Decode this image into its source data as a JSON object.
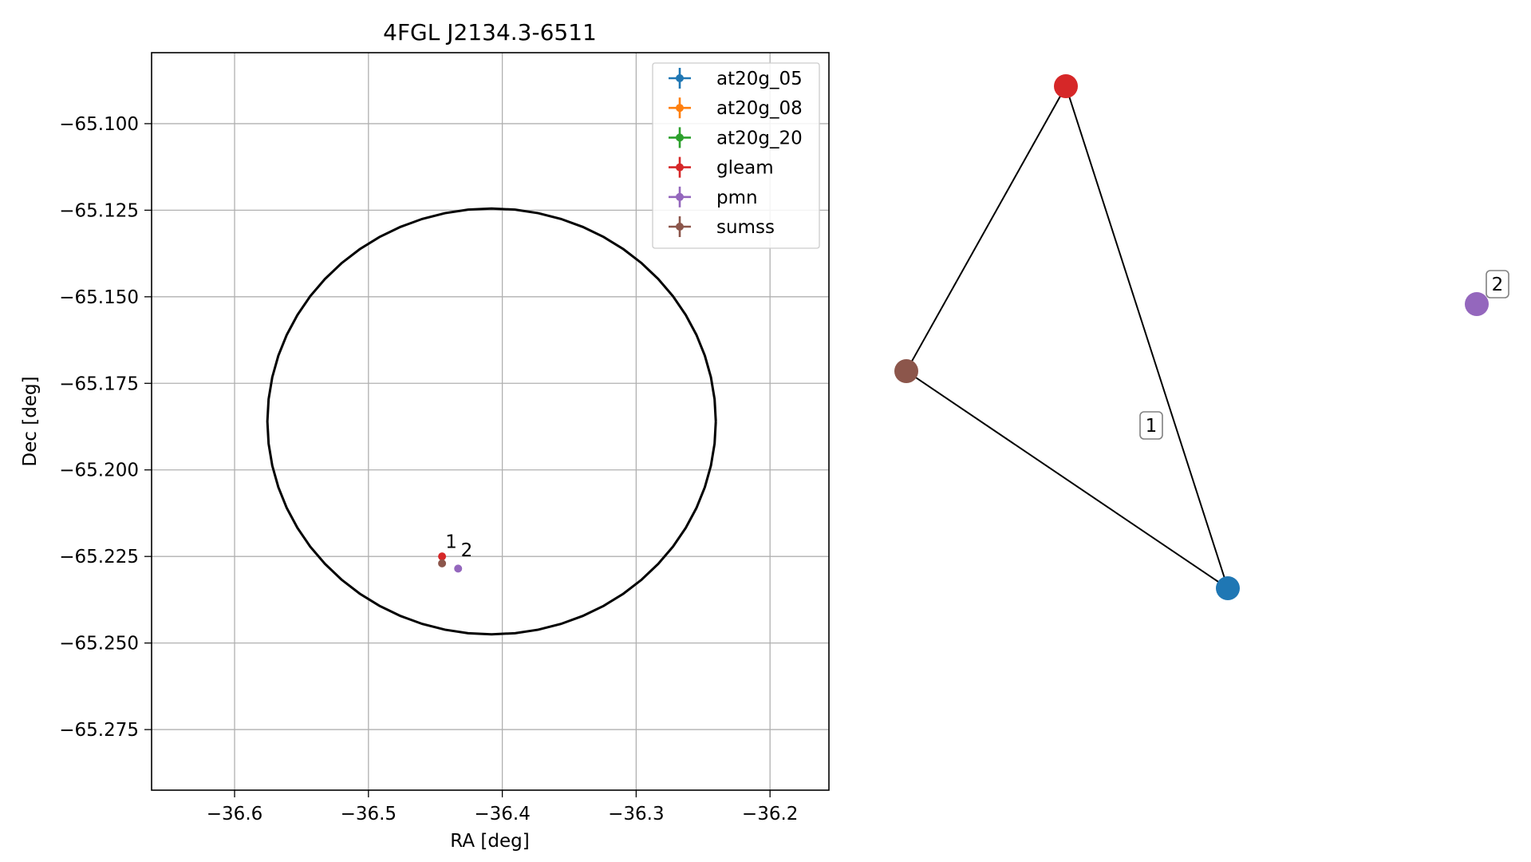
{
  "chart_data": [
    {
      "type": "scatter",
      "title": "4FGL J2134.3-6511",
      "xlabel": "RA [deg]",
      "ylabel": "Dec [deg]",
      "xlim": [
        -36.662,
        -36.156
      ],
      "ylim": [
        -65.2925,
        -65.0795
      ],
      "xticks": [
        -36.6,
        -36.5,
        -36.4,
        -36.3,
        -36.2
      ],
      "xtick_labels": [
        "−36.6",
        "−36.5",
        "−36.4",
        "−36.3",
        "−36.2"
      ],
      "yticks": [
        -65.1,
        -65.125,
        -65.15,
        -65.175,
        -65.2,
        -65.225,
        -65.25,
        -65.275
      ],
      "ytick_labels": [
        "−65.100",
        "−65.125",
        "−65.150",
        "−65.175",
        "−65.200",
        "−65.225",
        "−65.250",
        "−65.275"
      ],
      "grid": true,
      "legend_position": "top-right",
      "series": [
        {
          "name": "at20g_05",
          "color": "#1f77b4",
          "points": []
        },
        {
          "name": "at20g_08",
          "color": "#ff7f0e",
          "points": []
        },
        {
          "name": "at20g_20",
          "color": "#2ca02c",
          "points": []
        },
        {
          "name": "gleam",
          "color": "#d62728",
          "points": [
            {
              "x": -36.445,
              "y": -65.225
            }
          ]
        },
        {
          "name": "pmn",
          "color": "#9467bd",
          "points": [
            {
              "x": -36.433,
              "y": -65.2285
            }
          ]
        },
        {
          "name": "sumss",
          "color": "#8c564b",
          "points": [
            {
              "x": -36.445,
              "y": -65.227
            }
          ]
        }
      ],
      "ellipse": {
        "center_x": -36.408,
        "center_y": -65.186,
        "radius_x": 0.1675,
        "radius_y": 0.0615,
        "color": "#000000"
      },
      "annotations": [
        {
          "text": "1",
          "x": -36.4425,
          "y": -65.2225
        },
        {
          "text": "2",
          "x": -36.431,
          "y": -65.225
        }
      ]
    },
    {
      "type": "graph",
      "nodes": [
        {
          "id": "gleam",
          "color": "#d62728"
        },
        {
          "id": "sumss",
          "color": "#8c564b"
        },
        {
          "id": "at20g_05",
          "color": "#1f77b4"
        },
        {
          "id": "pmn",
          "color": "#9467bd"
        }
      ],
      "edges": [
        {
          "source": "gleam",
          "target": "sumss"
        },
        {
          "source": "gleam",
          "target": "at20g_05"
        },
        {
          "source": "sumss",
          "target": "at20g_05"
        }
      ],
      "component_labels": [
        "1",
        "2"
      ]
    }
  ]
}
